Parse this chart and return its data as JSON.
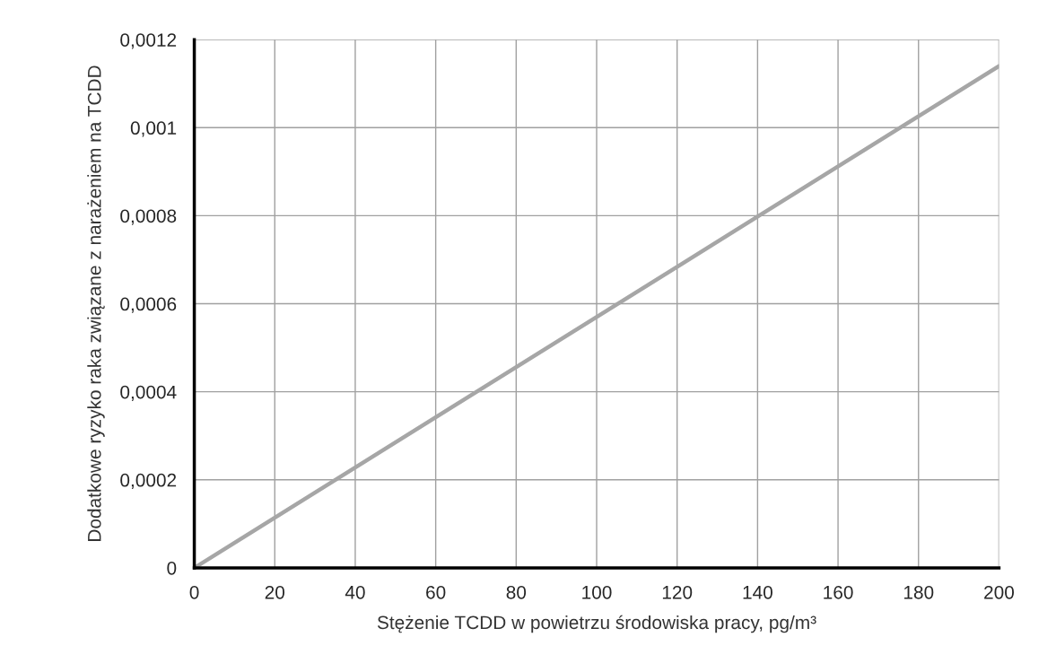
{
  "chart_data": {
    "type": "line",
    "xlabel": "Stężenie TCDD w powietrzu środowiska pracy, pg/m³",
    "ylabel": "Dodatkowe ryzyko raka związane z narażeniem na TCDD",
    "x": [
      0,
      200
    ],
    "series": [
      {
        "color": "#a6a6a6",
        "values": [
          0,
          0.00114
        ]
      }
    ],
    "xlim": [
      0,
      200
    ],
    "xticks": [
      0,
      20,
      40,
      60,
      80,
      100,
      120,
      140,
      160,
      180,
      200
    ],
    "ylim": [
      0,
      0.0012
    ],
    "yticks": [
      0,
      {
        "value": 0.0002,
        "label": "0,0002"
      },
      {
        "value": 0.0004,
        "label": "0,0004"
      },
      {
        "value": 0.0006,
        "label": "0,0006"
      },
      {
        "value": 0.0008,
        "label": "0,0008"
      },
      {
        "value": 0.001,
        "label": "0,001"
      },
      {
        "value": 0.0012,
        "label": "0,0012"
      }
    ],
    "grid": true,
    "marker": "none",
    "line_style": "solid"
  }
}
